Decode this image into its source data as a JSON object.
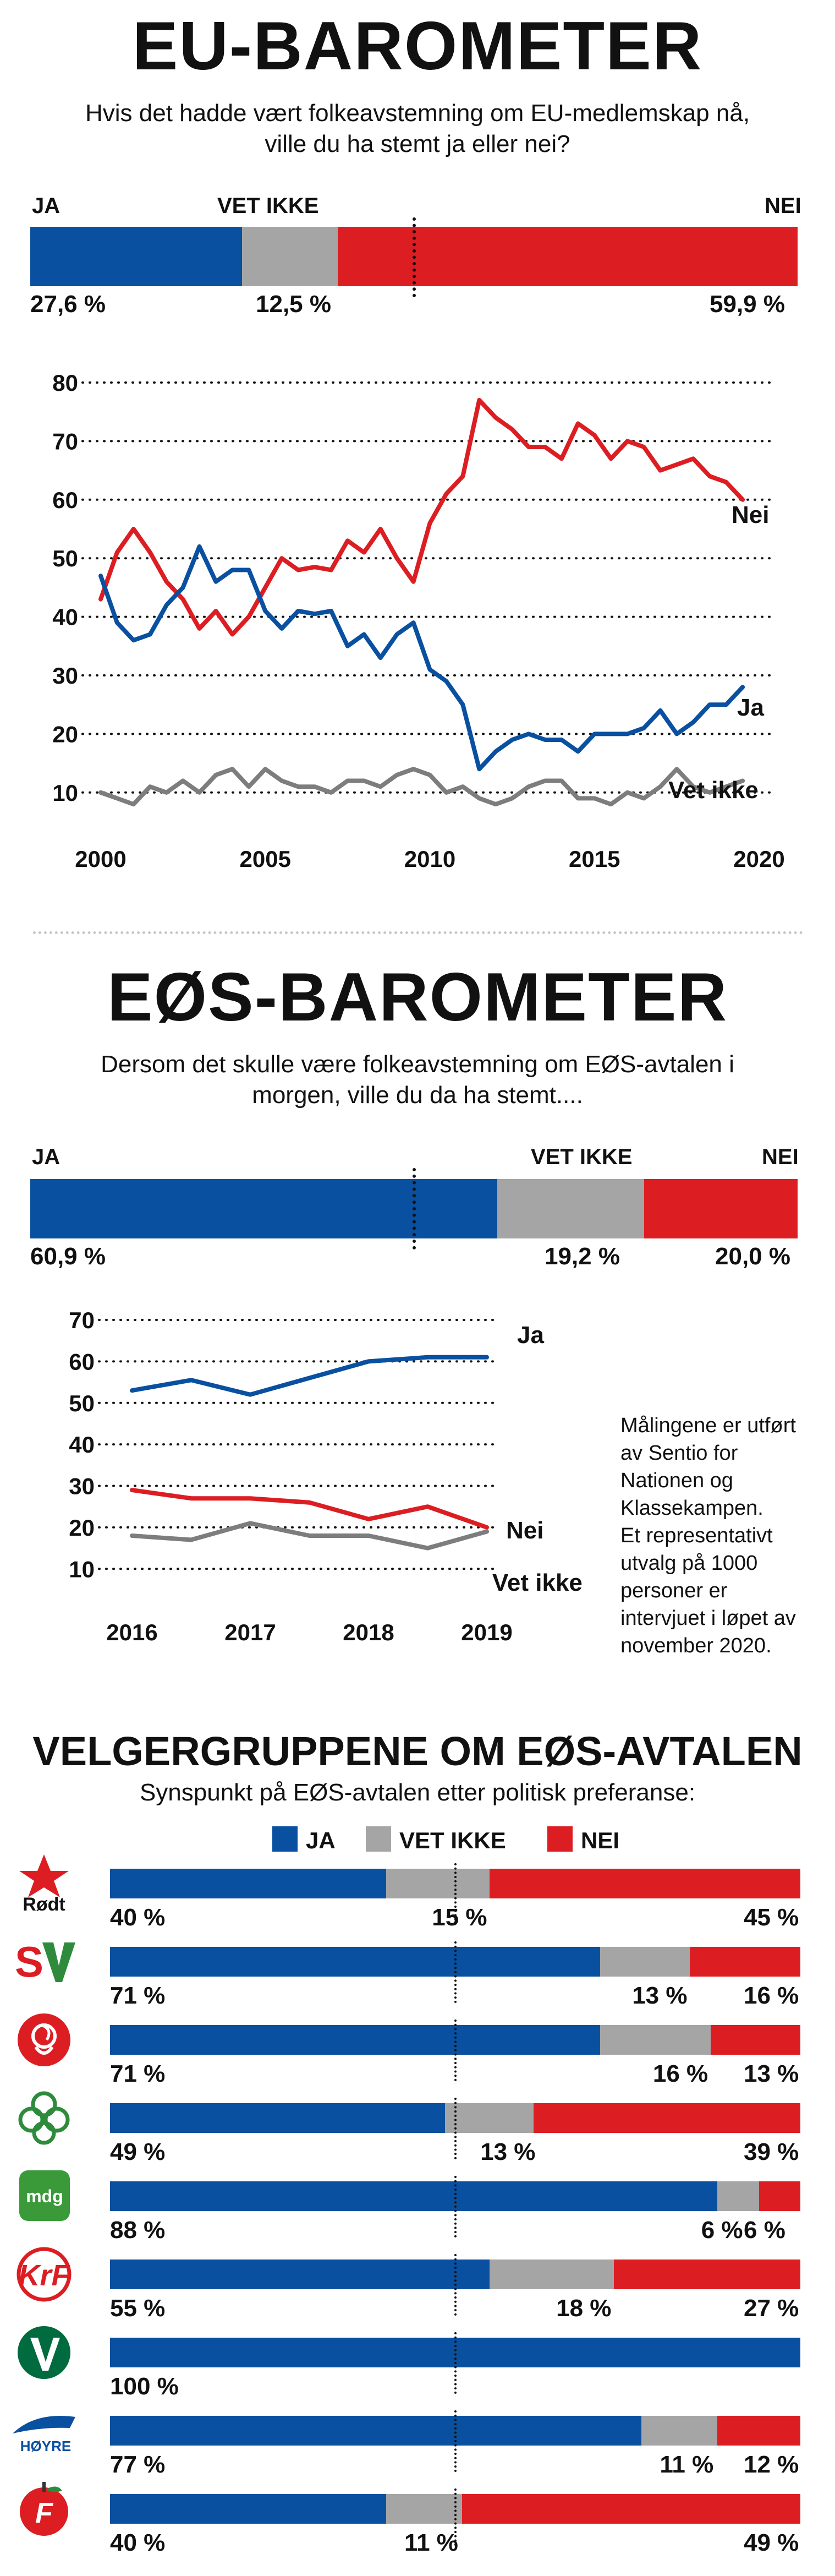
{
  "colors": {
    "ja": "#0a50a0",
    "vet_ikke": "#a5a5a5",
    "nei": "#dc1e23"
  },
  "eu": {
    "title": "EU-BAROMETER",
    "question_line1": "Hvis det hadde vært folkeavstemning om EU-medlemskap nå,",
    "question_line2": "ville du ha stemt ja eller nei?",
    "labels": {
      "ja": "JA",
      "vet_ikke": "VET IKKE",
      "nei": "NEI"
    },
    "pct_labels": {
      "ja": "27,6 %",
      "vet_ikke": "12,5 %",
      "nei": "59,9 %"
    }
  },
  "eos": {
    "title": "EØS-BAROMETER",
    "question_line1": "Dersom det skulle være folkeavstemning om EØS-avtalen i",
    "question_line2": "morgen, ville du da ha stemt....",
    "labels": {
      "ja": "JA",
      "vet_ikke": "VET IKKE",
      "nei": "NEI"
    },
    "pct_labels": {
      "ja": "60,9 %",
      "vet_ikke": "19,2 %",
      "nei": "20,0 %"
    },
    "note": [
      "Målingene er utført",
      "av Sentio for",
      "Nationen og",
      "Klassekampen.",
      "Et representativt",
      "utvalg på 1000",
      "personer er",
      "intervjuet i løpet av",
      "november 2020."
    ]
  },
  "groups": {
    "title": "VELGERGRUPPENE OM EØS-AVTALEN",
    "subtitle": "Synspunkt på EØS-avtalen etter politisk preferanse:",
    "legend": {
      "ja": "JA",
      "vet_ikke": "VET IKKE",
      "nei": "NEI"
    }
  },
  "parties": [
    {
      "name": "Rødt",
      "logo": "star-logo",
      "ja": 40,
      "vet_ikke": 15,
      "nei": 45,
      "ja_label": "40 %",
      "vet_ikke_label": "15 %",
      "nei_label": "45 %"
    },
    {
      "name": "SV",
      "logo": "sv-logo",
      "ja": 71,
      "vet_ikke": 13,
      "nei": 16,
      "ja_label": "71 %",
      "vet_ikke_label": "13 %",
      "nei_label": "16 %"
    },
    {
      "name": "Ap",
      "logo": "rose-logo",
      "ja": 71,
      "vet_ikke": 16,
      "nei": 13,
      "ja_label": "71 %",
      "vet_ikke_label": "16 %",
      "nei_label": "13 %"
    },
    {
      "name": "Sp",
      "logo": "clover-logo",
      "ja": 49,
      "vet_ikke": 13,
      "nei": 39,
      "ja_label": "49 %",
      "vet_ikke_label": "13 %",
      "nei_label": "39 %"
    },
    {
      "name": "MDG",
      "logo": "mdg-logo",
      "logo_text": "mdg",
      "ja": 88,
      "vet_ikke": 6,
      "nei": 6,
      "ja_label": "88 %",
      "vet_ikke_label": "6 %",
      "nei_label": "6 %"
    },
    {
      "name": "KrF",
      "logo": "krf-logo",
      "ja": 55,
      "vet_ikke": 18,
      "nei": 27,
      "ja_label": "55 %",
      "vet_ikke_label": "18 %",
      "nei_label": "27 %"
    },
    {
      "name": "Venstre",
      "logo": "v-logo",
      "ja": 100,
      "vet_ikke": 0,
      "nei": 0,
      "ja_label": "100 %",
      "vet_ikke_label": "",
      "nei_label": ""
    },
    {
      "name": "Høyre",
      "logo": "hoyre-logo",
      "logo_text": "HØYRE",
      "ja": 77,
      "vet_ikke": 11,
      "nei": 12,
      "ja_label": "77 %",
      "vet_ikke_label": "11 %",
      "nei_label": "12 %"
    },
    {
      "name": "FrP",
      "logo": "frp-logo",
      "ja": 40,
      "vet_ikke": 11,
      "nei": 49,
      "ja_label": "40 %",
      "vet_ikke_label": "11 %",
      "nei_label": "49 %"
    }
  ],
  "chart_data": [
    {
      "type": "bar",
      "categories": [
        "JA",
        "VET IKKE",
        "NEI"
      ],
      "values": [
        27.6,
        12.5,
        59.9
      ]
    },
    {
      "type": "line",
      "xlim": [
        2000,
        2020
      ],
      "ylim": [
        5,
        80
      ],
      "xticks": [
        2000,
        2005,
        2010,
        2015,
        2020
      ],
      "yticks": [
        10,
        20,
        30,
        40,
        50,
        60,
        70,
        80
      ],
      "series": [
        {
          "name": "Nei",
          "color": "#dc1e23",
          "points": [
            [
              2000,
              43
            ],
            [
              2000.5,
              51
            ],
            [
              2001,
              55
            ],
            [
              2001.5,
              51
            ],
            [
              2002,
              46
            ],
            [
              2002.5,
              43
            ],
            [
              2003,
              38
            ],
            [
              2003.5,
              41
            ],
            [
              2004,
              37
            ],
            [
              2004.5,
              40
            ],
            [
              2005,
              45
            ],
            [
              2005.5,
              50
            ],
            [
              2006,
              48
            ],
            [
              2006.5,
              48.5
            ],
            [
              2007,
              48
            ],
            [
              2007.5,
              53
            ],
            [
              2008,
              51
            ],
            [
              2008.5,
              55
            ],
            [
              2009,
              50
            ],
            [
              2009.5,
              46
            ],
            [
              2010,
              56
            ],
            [
              2010.5,
              61
            ],
            [
              2011,
              64
            ],
            [
              2011.5,
              77
            ],
            [
              2012,
              74
            ],
            [
              2012.5,
              72
            ],
            [
              2013,
              69
            ],
            [
              2013.5,
              69
            ],
            [
              2014,
              67
            ],
            [
              2014.5,
              73
            ],
            [
              2015,
              71
            ],
            [
              2015.5,
              67
            ],
            [
              2016,
              70
            ],
            [
              2016.5,
              69
            ],
            [
              2017,
              65
            ],
            [
              2017.5,
              66
            ],
            [
              2018,
              67
            ],
            [
              2018.5,
              64
            ],
            [
              2019,
              63
            ],
            [
              2019.5,
              60
            ]
          ]
        },
        {
          "name": "Ja",
          "color": "#0a50a0",
          "points": [
            [
              2000,
              47
            ],
            [
              2000.5,
              39
            ],
            [
              2001,
              36
            ],
            [
              2001.5,
              37
            ],
            [
              2002,
              42
            ],
            [
              2002.5,
              45
            ],
            [
              2003,
              52
            ],
            [
              2003.5,
              46
            ],
            [
              2004,
              48
            ],
            [
              2004.5,
              48
            ],
            [
              2005,
              41
            ],
            [
              2005.5,
              38
            ],
            [
              2006,
              41
            ],
            [
              2006.5,
              40.5
            ],
            [
              2007,
              41
            ],
            [
              2007.5,
              35
            ],
            [
              2008,
              37
            ],
            [
              2008.5,
              33
            ],
            [
              2009,
              37
            ],
            [
              2009.5,
              39
            ],
            [
              2010,
              31
            ],
            [
              2010.5,
              29
            ],
            [
              2011,
              25
            ],
            [
              2011.5,
              14
            ],
            [
              2012,
              17
            ],
            [
              2012.5,
              19
            ],
            [
              2013,
              20
            ],
            [
              2013.5,
              19
            ],
            [
              2014,
              19
            ],
            [
              2014.5,
              17
            ],
            [
              2015,
              20
            ],
            [
              2015.5,
              20
            ],
            [
              2016,
              20
            ],
            [
              2016.5,
              21
            ],
            [
              2017,
              24
            ],
            [
              2017.5,
              20
            ],
            [
              2018,
              22
            ],
            [
              2018.5,
              25
            ],
            [
              2019,
              25
            ],
            [
              2019.5,
              28
            ]
          ]
        },
        {
          "name": "Vet ikke",
          "color": "#7d7d7d",
          "points": [
            [
              2000,
              10
            ],
            [
              2000.5,
              9
            ],
            [
              2001,
              8
            ],
            [
              2001.5,
              11
            ],
            [
              2002,
              10
            ],
            [
              2002.5,
              12
            ],
            [
              2003,
              10
            ],
            [
              2003.5,
              13
            ],
            [
              2004,
              14
            ],
            [
              2004.5,
              11
            ],
            [
              2005,
              14
            ],
            [
              2005.5,
              12
            ],
            [
              2006,
              11
            ],
            [
              2006.5,
              11
            ],
            [
              2007,
              10
            ],
            [
              2007.5,
              12
            ],
            [
              2008,
              12
            ],
            [
              2008.5,
              11
            ],
            [
              2009,
              13
            ],
            [
              2009.5,
              14
            ],
            [
              2010,
              13
            ],
            [
              2010.5,
              10
            ],
            [
              2011,
              11
            ],
            [
              2011.5,
              9
            ],
            [
              2012,
              8
            ],
            [
              2012.5,
              9
            ],
            [
              2013,
              11
            ],
            [
              2013.5,
              12
            ],
            [
              2014,
              12
            ],
            [
              2014.5,
              9
            ],
            [
              2015,
              9
            ],
            [
              2015.5,
              8
            ],
            [
              2016,
              10
            ],
            [
              2016.5,
              9
            ],
            [
              2017,
              11
            ],
            [
              2017.5,
              14
            ],
            [
              2018,
              11
            ],
            [
              2018.5,
              10
            ],
            [
              2019,
              11
            ],
            [
              2019.5,
              12
            ]
          ]
        }
      ]
    },
    {
      "type": "bar",
      "categories": [
        "JA",
        "VET IKKE",
        "NEI"
      ],
      "values": [
        60.9,
        19.2,
        20.0
      ]
    },
    {
      "type": "line",
      "xlim": [
        2016,
        2019
      ],
      "ylim": [
        5,
        70
      ],
      "xticks": [
        2016,
        2017,
        2018,
        2019
      ],
      "yticks": [
        10,
        20,
        30,
        40,
        50,
        60,
        70
      ],
      "series": [
        {
          "name": "Ja",
          "color": "#0a50a0",
          "points": [
            [
              2016,
              53
            ],
            [
              2016.5,
              55.5
            ],
            [
              2017,
              52
            ],
            [
              2017.5,
              56
            ],
            [
              2018,
              60
            ],
            [
              2018.5,
              61
            ],
            [
              2019,
              61
            ]
          ]
        },
        {
          "name": "Nei",
          "color": "#dc1e23",
          "points": [
            [
              2016,
              29
            ],
            [
              2016.5,
              27
            ],
            [
              2017,
              27
            ],
            [
              2017.5,
              26
            ],
            [
              2018,
              22
            ],
            [
              2018.5,
              25
            ],
            [
              2019,
              20
            ]
          ]
        },
        {
          "name": "Vet ikke",
          "color": "#7d7d7d",
          "points": [
            [
              2016,
              18
            ],
            [
              2016.5,
              17
            ],
            [
              2017,
              21
            ],
            [
              2017.5,
              18
            ],
            [
              2018,
              18
            ],
            [
              2018.5,
              15
            ],
            [
              2019,
              19
            ]
          ]
        }
      ]
    },
    {
      "type": "bar",
      "stacked": true,
      "title": "VELGERGRUPPENE OM EØS-AVTALEN",
      "categories": [
        "Rødt",
        "SV",
        "Ap",
        "Sp",
        "MDG",
        "KrF",
        "Venstre",
        "Høyre",
        "FrP"
      ],
      "series": [
        {
          "name": "JA",
          "values": [
            40,
            71,
            71,
            49,
            88,
            55,
            100,
            77,
            40
          ]
        },
        {
          "name": "VET IKKE",
          "values": [
            15,
            13,
            16,
            13,
            6,
            18,
            0,
            11,
            11
          ]
        },
        {
          "name": "NEI",
          "values": [
            45,
            16,
            13,
            39,
            6,
            27,
            0,
            12,
            49
          ]
        }
      ]
    }
  ]
}
